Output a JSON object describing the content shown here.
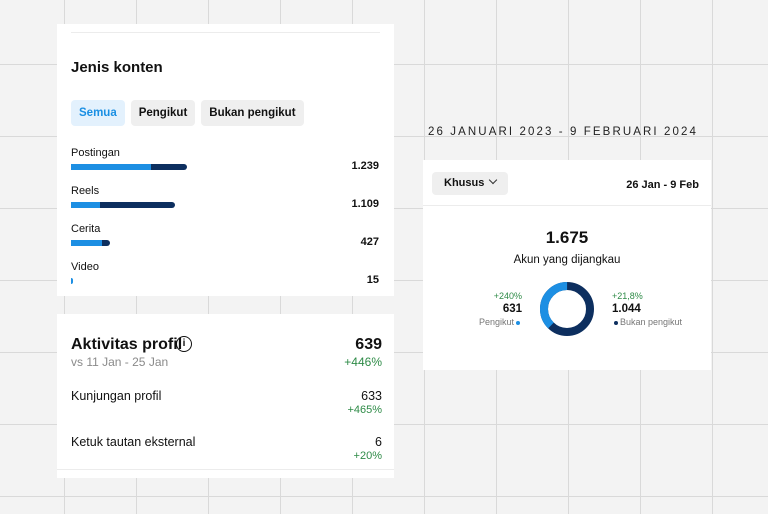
{
  "content_types": {
    "title": "Jenis konten",
    "tabs": [
      {
        "label": "Semua",
        "active": true
      },
      {
        "label": "Pengikut",
        "active": false
      },
      {
        "label": "Bukan pengikut",
        "active": false
      }
    ],
    "rows": [
      {
        "label": "Postingan",
        "value": "1.239",
        "followers_fraction": 0.69,
        "non_followers_fraction": 0.31,
        "share_of_max": 1.0
      },
      {
        "label": "Reels",
        "value": "1.109",
        "followers_fraction": 0.28,
        "non_followers_fraction": 0.72,
        "share_of_max": 0.9
      },
      {
        "label": "Cerita",
        "value": "427",
        "followers_fraction": 0.8,
        "non_followers_fraction": 0.2,
        "share_of_max": 0.34
      },
      {
        "label": "Video",
        "value": "15",
        "followers_fraction": 1.0,
        "non_followers_fraction": 0.0,
        "share_of_max": 0.02
      }
    ],
    "colors": {
      "followers": "#1d8fe3",
      "non_followers": "#0d2f5f"
    }
  },
  "profile_activity": {
    "title": "Aktivitas profil",
    "info_icon": "info-icon",
    "comparison": "vs 11 Jan - 25 Jan",
    "total": "639",
    "total_change": "+446%",
    "rows": [
      {
        "label": "Kunjungan profil",
        "value": "633",
        "change": "+465%"
      },
      {
        "label": "Ketuk tautan eksternal",
        "value": "6",
        "change": "+20%"
      }
    ]
  },
  "date_caption": "26 JANUARI 2023 - 9 FEBRUARI 2024",
  "reach": {
    "dropdown_label": "Khusus",
    "dropdown_icon": "chevron-down-icon",
    "range": "26 Jan - 9 Feb",
    "total": "1.675",
    "caption": "Akun yang dijangkau",
    "followers": {
      "pct": "+240%",
      "value": "631",
      "label": "Pengikut",
      "fraction": 0.377,
      "color": "#1d8fe3"
    },
    "non_followers": {
      "pct": "+21,8%",
      "value": "1.044",
      "label": "Bukan pengikut",
      "fraction": 0.623,
      "color": "#0d2f5f"
    }
  }
}
